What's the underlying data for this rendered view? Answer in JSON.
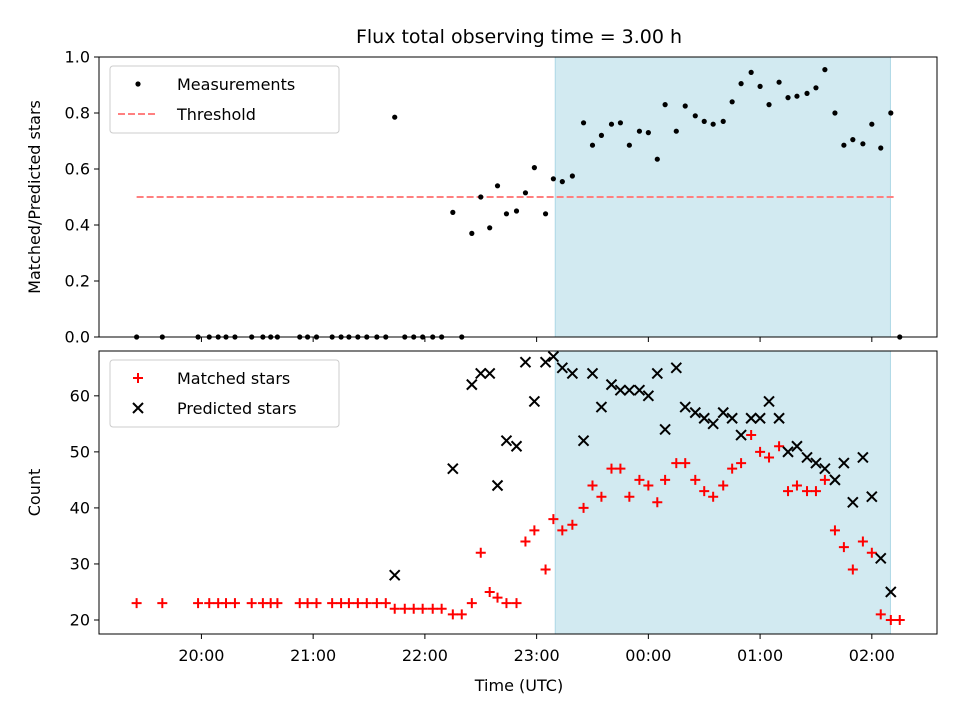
{
  "chart_data": {
    "type": "scatter",
    "title": "Flux total observing time = 3.00 h",
    "xlabel": "Time (UTC)",
    "xticks": [
      {
        "t": 20.0,
        "label": "20:00"
      },
      {
        "t": 21.0,
        "label": "21:00"
      },
      {
        "t": 22.0,
        "label": "22:00"
      },
      {
        "t": 23.0,
        "label": "23:00"
      },
      {
        "t": 24.0,
        "label": "00:00"
      },
      {
        "t": 25.0,
        "label": "01:00"
      },
      {
        "t": 26.0,
        "label": "02:00"
      }
    ],
    "xlim": [
      "19:05",
      "02:35"
    ],
    "shaded_region": {
      "start": "23:10",
      "end": "02:10",
      "color": "#add8e6"
    },
    "panels": [
      {
        "id": "ratio",
        "ylabel": "Matched/Predicted stars",
        "ylim": [
          0,
          1.0
        ],
        "yticks": [
          0.0,
          0.2,
          0.4,
          0.6,
          0.8,
          1.0
        ],
        "legend_position": "top-left",
        "series": [
          {
            "name": "Measurements",
            "marker": "dot",
            "color": "#000000",
            "points": [
              [
                19.42,
                0
              ],
              [
                19.65,
                0
              ],
              [
                19.97,
                0
              ],
              [
                20.07,
                0
              ],
              [
                20.15,
                0
              ],
              [
                20.22,
                0
              ],
              [
                20.3,
                0
              ],
              [
                20.45,
                0
              ],
              [
                20.55,
                0
              ],
              [
                20.62,
                0
              ],
              [
                20.68,
                0
              ],
              [
                20.88,
                0
              ],
              [
                20.95,
                0
              ],
              [
                21.03,
                0
              ],
              [
                21.17,
                0
              ],
              [
                21.25,
                0
              ],
              [
                21.32,
                0
              ],
              [
                21.4,
                0
              ],
              [
                21.48,
                0
              ],
              [
                21.57,
                0
              ],
              [
                21.65,
                0
              ],
              [
                21.73,
                0.785
              ],
              [
                21.82,
                0
              ],
              [
                21.9,
                0
              ],
              [
                21.98,
                0
              ],
              [
                22.07,
                0
              ],
              [
                22.15,
                0
              ],
              [
                22.25,
                0.445
              ],
              [
                22.33,
                0
              ],
              [
                22.42,
                0.37
              ],
              [
                22.5,
                0.5
              ],
              [
                22.58,
                0.39
              ],
              [
                22.65,
                0.54
              ],
              [
                22.73,
                0.44
              ],
              [
                22.82,
                0.45
              ],
              [
                22.9,
                0.515
              ],
              [
                22.98,
                0.605
              ],
              [
                23.08,
                0.44
              ],
              [
                23.15,
                0.565
              ],
              [
                23.23,
                0.555
              ],
              [
                23.32,
                0.575
              ],
              [
                23.42,
                0.765
              ],
              [
                23.5,
                0.685
              ],
              [
                23.58,
                0.72
              ],
              [
                23.67,
                0.76
              ],
              [
                23.75,
                0.765
              ],
              [
                23.83,
                0.685
              ],
              [
                23.92,
                0.735
              ],
              [
                24.0,
                0.73
              ],
              [
                24.08,
                0.635
              ],
              [
                24.15,
                0.83
              ],
              [
                24.25,
                0.735
              ],
              [
                24.33,
                0.825
              ],
              [
                24.42,
                0.79
              ],
              [
                24.5,
                0.77
              ],
              [
                24.58,
                0.76
              ],
              [
                24.67,
                0.77
              ],
              [
                24.75,
                0.84
              ],
              [
                24.83,
                0.905
              ],
              [
                24.92,
                0.945
              ],
              [
                25.0,
                0.895
              ],
              [
                25.08,
                0.83
              ],
              [
                25.17,
                0.91
              ],
              [
                25.25,
                0.855
              ],
              [
                25.33,
                0.86
              ],
              [
                25.42,
                0.87
              ],
              [
                25.5,
                0.89
              ],
              [
                25.58,
                0.955
              ],
              [
                25.67,
                0.8
              ],
              [
                25.75,
                0.685
              ],
              [
                25.83,
                0.705
              ],
              [
                25.92,
                0.69
              ],
              [
                26.0,
                0.76
              ],
              [
                26.08,
                0.675
              ],
              [
                26.17,
                0.8
              ],
              [
                26.25,
                0
              ]
            ]
          },
          {
            "name": "Threshold",
            "marker": "dashed-line",
            "color": "#ff8080",
            "points": [
              [
                19.42,
                0.5
              ],
              [
                26.22,
                0.5
              ]
            ]
          }
        ]
      },
      {
        "id": "counts",
        "ylabel": "Count",
        "ylim": [
          17.5,
          68
        ],
        "yticks": [
          20,
          30,
          40,
          50,
          60
        ],
        "legend_position": "top-left",
        "series": [
          {
            "name": "Matched stars",
            "marker": "plus",
            "color": "#ff0000",
            "points": [
              [
                19.42,
                23
              ],
              [
                19.65,
                23
              ],
              [
                19.97,
                23
              ],
              [
                20.07,
                23
              ],
              [
                20.15,
                23
              ],
              [
                20.22,
                23
              ],
              [
                20.3,
                23
              ],
              [
                20.45,
                23
              ],
              [
                20.55,
                23
              ],
              [
                20.62,
                23
              ],
              [
                20.68,
                23
              ],
              [
                20.88,
                23
              ],
              [
                20.95,
                23
              ],
              [
                21.03,
                23
              ],
              [
                21.17,
                23
              ],
              [
                21.25,
                23
              ],
              [
                21.32,
                23
              ],
              [
                21.4,
                23
              ],
              [
                21.48,
                23
              ],
              [
                21.57,
                23
              ],
              [
                21.65,
                23
              ],
              [
                21.73,
                22
              ],
              [
                21.82,
                22
              ],
              [
                21.9,
                22
              ],
              [
                21.98,
                22
              ],
              [
                22.07,
                22
              ],
              [
                22.15,
                22
              ],
              [
                22.25,
                21
              ],
              [
                22.33,
                21
              ],
              [
                22.42,
                23
              ],
              [
                22.5,
                32
              ],
              [
                22.58,
                25
              ],
              [
                22.65,
                24
              ],
              [
                22.73,
                23
              ],
              [
                22.82,
                23
              ],
              [
                22.9,
                34
              ],
              [
                22.98,
                36
              ],
              [
                23.08,
                29
              ],
              [
                23.15,
                38
              ],
              [
                23.23,
                36
              ],
              [
                23.32,
                37
              ],
              [
                23.42,
                40
              ],
              [
                23.5,
                44
              ],
              [
                23.58,
                42
              ],
              [
                23.67,
                47
              ],
              [
                23.75,
                47
              ],
              [
                23.83,
                42
              ],
              [
                23.92,
                45
              ],
              [
                24.0,
                44
              ],
              [
                24.08,
                41
              ],
              [
                24.15,
                45
              ],
              [
                24.25,
                48
              ],
              [
                24.33,
                48
              ],
              [
                24.42,
                45
              ],
              [
                24.5,
                43
              ],
              [
                24.58,
                42
              ],
              [
                24.67,
                44
              ],
              [
                24.75,
                47
              ],
              [
                24.83,
                48
              ],
              [
                24.92,
                53
              ],
              [
                25.0,
                50
              ],
              [
                25.08,
                49
              ],
              [
                25.17,
                51
              ],
              [
                25.25,
                43
              ],
              [
                25.33,
                44
              ],
              [
                25.42,
                43
              ],
              [
                25.5,
                43
              ],
              [
                25.58,
                45
              ],
              [
                25.67,
                36
              ],
              [
                25.75,
                33
              ],
              [
                25.83,
                29
              ],
              [
                25.92,
                34
              ],
              [
                26.0,
                32
              ],
              [
                26.08,
                21
              ],
              [
                26.17,
                20
              ],
              [
                26.25,
                20
              ]
            ]
          },
          {
            "name": "Predicted stars",
            "marker": "x",
            "color": "#000000",
            "points": [
              [
                21.73,
                28
              ],
              [
                22.25,
                47
              ],
              [
                22.42,
                62
              ],
              [
                22.5,
                64
              ],
              [
                22.58,
                64
              ],
              [
                22.65,
                44
              ],
              [
                22.73,
                52
              ],
              [
                22.82,
                51
              ],
              [
                22.9,
                66
              ],
              [
                22.98,
                59
              ],
              [
                23.08,
                66
              ],
              [
                23.15,
                67
              ],
              [
                23.23,
                65
              ],
              [
                23.32,
                64
              ],
              [
                23.42,
                52
              ],
              [
                23.5,
                64
              ],
              [
                23.58,
                58
              ],
              [
                23.67,
                62
              ],
              [
                23.75,
                61
              ],
              [
                23.83,
                61
              ],
              [
                23.92,
                61
              ],
              [
                24.0,
                60
              ],
              [
                24.08,
                64
              ],
              [
                24.15,
                54
              ],
              [
                24.25,
                65
              ],
              [
                24.33,
                58
              ],
              [
                24.42,
                57
              ],
              [
                24.5,
                56
              ],
              [
                24.58,
                55
              ],
              [
                24.67,
                57
              ],
              [
                24.75,
                56
              ],
              [
                24.83,
                53
              ],
              [
                24.92,
                56
              ],
              [
                25.0,
                56
              ],
              [
                25.08,
                59
              ],
              [
                25.17,
                56
              ],
              [
                25.25,
                50
              ],
              [
                25.33,
                51
              ],
              [
                25.42,
                49
              ],
              [
                25.5,
                48
              ],
              [
                25.58,
                47
              ],
              [
                25.67,
                45
              ],
              [
                25.75,
                48
              ],
              [
                25.83,
                41
              ],
              [
                25.92,
                49
              ],
              [
                26.0,
                42
              ],
              [
                26.08,
                31
              ],
              [
                26.17,
                25
              ]
            ]
          }
        ]
      }
    ]
  }
}
